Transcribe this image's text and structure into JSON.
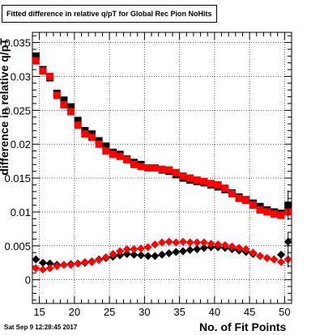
{
  "header": {
    "title": "Fitted difference in relative q/pT for Global Rec Pion NoHits"
  },
  "footer": {
    "timestamp": "Sat Sep  9 12:28:45 2017"
  },
  "chart_data": {
    "type": "scatter",
    "title": "Fitted difference in relative q/pT for Global Rec Pion NoHits",
    "xlabel": "No. of Fit Points",
    "ylabel": "difference in relative q/pT",
    "xlim": [
      14,
      51
    ],
    "ylim": [
      -0.0035,
      0.0365
    ],
    "xticks": [
      15,
      20,
      25,
      30,
      35,
      40,
      45,
      50
    ],
    "yticks": [
      0,
      0.005,
      0.01,
      0.015,
      0.02,
      0.025,
      0.03,
      0.035
    ],
    "ytick_labels": [
      "0",
      "0.005",
      "0.01",
      "0.015",
      "0.02",
      "0.025",
      "0.03",
      "0.035"
    ],
    "grid": true,
    "x": [
      14.5,
      15.5,
      16.5,
      17.5,
      18.5,
      19.5,
      20.5,
      21.5,
      22.5,
      23.5,
      24.5,
      25.5,
      26.5,
      27.5,
      28.5,
      29.5,
      30.5,
      31.5,
      32.5,
      33.5,
      34.5,
      35.5,
      36.5,
      37.5,
      38.5,
      39.5,
      40.5,
      41.5,
      42.5,
      43.5,
      44.5,
      45.5,
      46.5,
      47.5,
      48.5,
      49.5,
      50.5
    ],
    "series": [
      {
        "color": "#000000",
        "marker": "square",
        "values": [
          0.033,
          0.031,
          0.0298,
          0.0275,
          0.0265,
          0.0255,
          0.0235,
          0.022,
          0.0215,
          0.0205,
          0.0197,
          0.0188,
          0.0185,
          0.0178,
          0.0173,
          0.017,
          0.0165,
          0.0165,
          0.0162,
          0.016,
          0.0155,
          0.015,
          0.0147,
          0.0145,
          0.0143,
          0.014,
          0.0137,
          0.0133,
          0.0128,
          0.0122,
          0.0118,
          0.0113,
          0.0108,
          0.0103,
          0.01,
          0.0098,
          0.011
        ]
      },
      {
        "color": "#ff0000",
        "marker": "square",
        "values": [
          0.0323,
          0.0308,
          0.03,
          0.0272,
          0.0258,
          0.0248,
          0.0228,
          0.0215,
          0.021,
          0.02,
          0.019,
          0.0185,
          0.0182,
          0.0177,
          0.017,
          0.0167,
          0.0165,
          0.0165,
          0.0163,
          0.0162,
          0.0158,
          0.0153,
          0.015,
          0.0147,
          0.0145,
          0.0142,
          0.014,
          0.0135,
          0.0127,
          0.012,
          0.0117,
          0.011,
          0.0103,
          0.01,
          0.0097,
          0.0095,
          0.01
        ]
      },
      {
        "color": "#000000",
        "marker": "diamond",
        "values": [
          0.003,
          0.0025,
          0.0024,
          0.0022,
          0.0022,
          0.0023,
          0.0024,
          0.0025,
          0.0027,
          0.003,
          0.0032,
          0.0034,
          0.0036,
          0.0038,
          0.0037,
          0.0036,
          0.0035,
          0.0035,
          0.0037,
          0.0039,
          0.0041,
          0.0042,
          0.0044,
          0.0045,
          0.0047,
          0.0048,
          0.0048,
          0.0047,
          0.0045,
          0.0043,
          0.0041,
          0.0038,
          0.0035,
          0.0032,
          0.003,
          0.0037,
          0.0056
        ]
      },
      {
        "color": "#ff0000",
        "marker": "diamond",
        "values": [
          0.0017,
          0.0015,
          0.0017,
          0.002,
          0.0022,
          0.0022,
          0.0024,
          0.0026,
          0.0026,
          0.0029,
          0.0033,
          0.0038,
          0.0042,
          0.0045,
          0.0045,
          0.0046,
          0.0048,
          0.0052,
          0.0055,
          0.0056,
          0.0055,
          0.0056,
          0.0055,
          0.0055,
          0.0055,
          0.0053,
          0.0052,
          0.0051,
          0.0049,
          0.0047,
          0.0045,
          0.004,
          0.0035,
          0.0032,
          0.003,
          0.0026,
          0.003
        ]
      }
    ]
  }
}
